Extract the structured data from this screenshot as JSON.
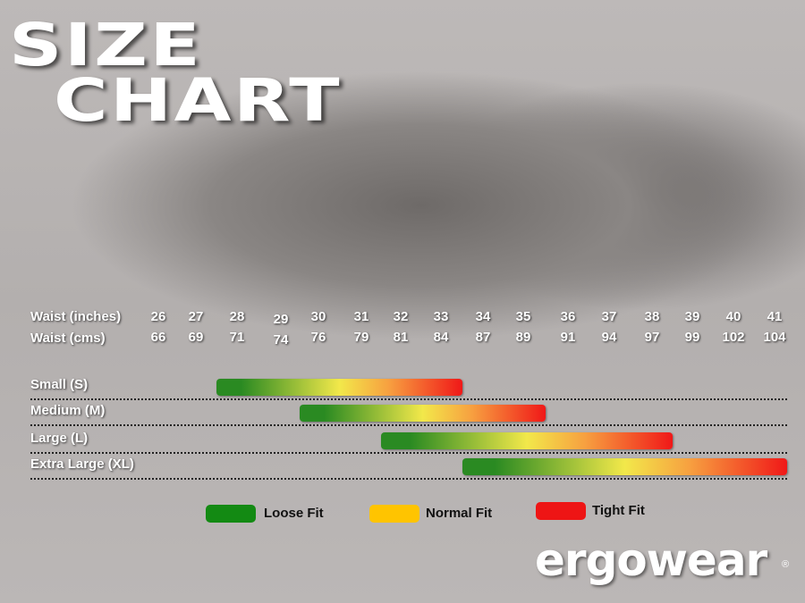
{
  "title_line1": "SIZE",
  "title_line2": "CHART",
  "chart_data": {
    "type": "bar",
    "orientation": "horizontal-range",
    "row_labels": {
      "inches": "Waist (inches)",
      "cms": "Waist (cms)"
    },
    "waist_inches": [
      26,
      27,
      28,
      29,
      30,
      31,
      32,
      33,
      34,
      35,
      36,
      37,
      38,
      39,
      40,
      41
    ],
    "waist_cms": [
      66,
      69,
      71,
      74,
      76,
      79,
      81,
      84,
      87,
      89,
      91,
      94,
      97,
      99,
      102,
      104
    ],
    "sizes": [
      {
        "label": "Small (S)",
        "start_in": 28,
        "end_in": 33
      },
      {
        "label": "Medium (M)",
        "start_in": 30,
        "end_in": 35
      },
      {
        "label": "Large (L)",
        "start_in": 32,
        "end_in": 38
      },
      {
        "label": "Extra Large (XL)",
        "start_in": 34,
        "end_in": 41
      }
    ],
    "bar_gradient": [
      "#2a8a22",
      "#f2e84a",
      "#f01818"
    ],
    "legend": [
      {
        "label": "Loose Fit",
        "color": "#138a13"
      },
      {
        "label": "Normal Fit",
        "color": "#ffc400"
      },
      {
        "label": "Tight Fit",
        "color": "#ee1515"
      }
    ]
  },
  "brand": {
    "logo": "ergowear",
    "registered": "®"
  }
}
